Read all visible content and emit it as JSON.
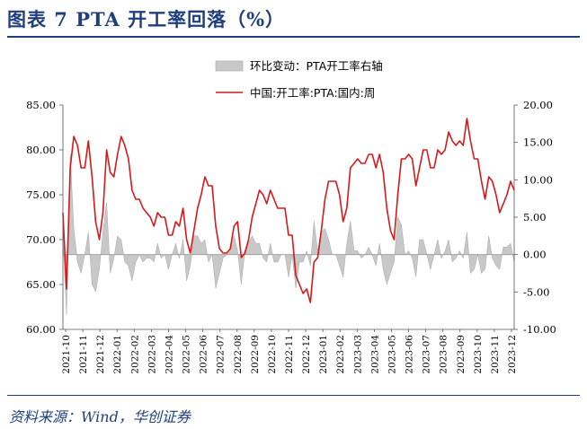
{
  "header": {
    "title": "图表 7   PTA 开工率回落（%）"
  },
  "source": "资料来源：Wind，华创证券",
  "colors": {
    "line": "#d7191c",
    "bar": "#c8c8c8",
    "bar_stroke": "#a6a6a6",
    "title": "#1f3e7d"
  },
  "chart_data": {
    "type": "line+area",
    "title": "",
    "legend": [
      "环比变动：PTA开工率右轴",
      "中国:开工率:PTA:国内:周"
    ],
    "legend_position": "top-center",
    "x_tick_labels": [
      "2021-10",
      "2021-11",
      "2021-12",
      "2022-01",
      "2022-02",
      "2022-03",
      "2022-04",
      "2022-05",
      "2022-06",
      "2022-07",
      "2022-08",
      "2022-09",
      "2022-10",
      "2022-11",
      "2022-12",
      "2023-01",
      "2023-02",
      "2023-03",
      "2023-04",
      "2023-05",
      "2023-06",
      "2023-07",
      "2023-08",
      "2023-09",
      "2023-10",
      "2023-11",
      "2023-12"
    ],
    "y_left_ticks": [
      "60.00",
      "65.00",
      "70.00",
      "75.00",
      "80.00",
      "85.00"
    ],
    "y_right_ticks": [
      "-10.00",
      "-5.00",
      "0.00",
      "5.00",
      "10.00",
      "15.00",
      "20.00"
    ],
    "y_left_range": [
      60,
      85
    ],
    "y_right_range": [
      -10,
      20
    ],
    "series": [
      {
        "name": "中国:开工率:PTA:国内:周",
        "axis": "left",
        "type": "line",
        "values": [
          73.0,
          64.5,
          78.0,
          81.5,
          80.5,
          78.0,
          78.0,
          81.0,
          77.0,
          72.0,
          70.0,
          73.0,
          80.0,
          77.5,
          77.0,
          79.5,
          81.5,
          80.5,
          79.0,
          75.5,
          74.5,
          74.5,
          73.5,
          73.0,
          72.5,
          71.5,
          73.0,
          72.5,
          72.5,
          70.5,
          70.5,
          72.0,
          71.5,
          73.5,
          70.0,
          68.5,
          71.0,
          73.5,
          75.0,
          77.0,
          76.0,
          76.0,
          71.5,
          69.0,
          68.5,
          68.5,
          69.0,
          71.5,
          72.0,
          68.0,
          68.5,
          70.0,
          72.5,
          74.0,
          75.5,
          75.0,
          74.0,
          75.5,
          74.5,
          73.5,
          73.5,
          73.5,
          70.5,
          70.5,
          66.0,
          65.0,
          64.0,
          64.5,
          63.0,
          67.5,
          68.0,
          71.0,
          74.5,
          76.5,
          76.5,
          76.5,
          75.0,
          72.0,
          73.5,
          78.0,
          78.5,
          79.0,
          78.5,
          78.5,
          79.5,
          79.5,
          78.0,
          79.5,
          77.5,
          73.5,
          71.0,
          70.0,
          75.0,
          79.0,
          79.0,
          79.5,
          79.0,
          76.0,
          78.0,
          80.0,
          80.0,
          78.0,
          78.0,
          80.0,
          79.5,
          80.0,
          82.0,
          81.0,
          80.5,
          81.0,
          80.5,
          83.5,
          81.0,
          79.0,
          79.0,
          76.5,
          74.5,
          77.0,
          76.5,
          75.0,
          73.0,
          74.0,
          75.0,
          76.5,
          75.5
        ]
      },
      {
        "name": "环比变动：PTA开工率右轴",
        "axis": "right",
        "type": "area",
        "values": [
          2.5,
          -8.0,
          13.5,
          3.5,
          -1.0,
          -2.5,
          0.0,
          3.0,
          -4.0,
          -5.0,
          -2.0,
          3.0,
          7.0,
          -2.5,
          -0.5,
          2.5,
          2.0,
          -1.0,
          -1.5,
          -3.5,
          -1.0,
          0.0,
          -1.0,
          -0.5,
          -0.5,
          -1.0,
          1.5,
          -0.5,
          0.0,
          -2.0,
          0.0,
          1.5,
          -0.5,
          2.0,
          -3.5,
          -1.5,
          2.5,
          2.5,
          1.5,
          2.0,
          -1.0,
          0.0,
          -4.5,
          -2.5,
          -0.5,
          0.0,
          0.5,
          2.5,
          0.5,
          -4.0,
          0.5,
          1.5,
          2.5,
          1.5,
          1.5,
          -0.5,
          -1.0,
          1.5,
          -1.0,
          -1.0,
          0.0,
          0.0,
          -3.0,
          0.0,
          -4.5,
          -1.0,
          -1.0,
          0.5,
          -1.5,
          4.5,
          0.5,
          3.0,
          3.5,
          2.0,
          0.0,
          0.0,
          -1.5,
          -3.0,
          1.5,
          4.5,
          0.5,
          0.5,
          -0.5,
          0.0,
          1.0,
          0.0,
          -1.5,
          1.5,
          -2.0,
          -4.0,
          -2.5,
          -1.0,
          5.0,
          4.0,
          0.0,
          0.5,
          -0.5,
          -3.0,
          2.0,
          2.0,
          0.0,
          -2.0,
          0.0,
          2.0,
          -0.5,
          0.5,
          2.0,
          -1.0,
          -0.5,
          0.5,
          -0.5,
          3.0,
          -2.5,
          -2.0,
          0.0,
          -2.5,
          -2.0,
          2.5,
          -0.5,
          -1.5,
          -2.0,
          1.0,
          1.0,
          1.5,
          -1.0
        ]
      }
    ],
    "grid": false
  }
}
